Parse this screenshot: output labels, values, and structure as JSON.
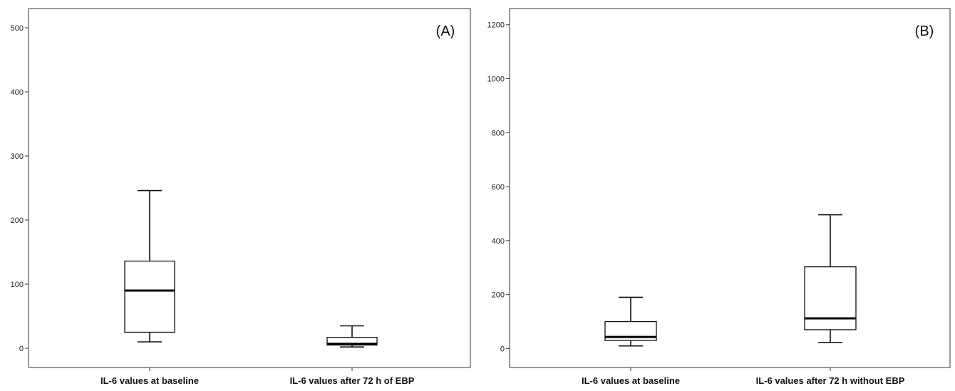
{
  "chart_data": [
    {
      "type": "box",
      "panel_label": "(A)",
      "categories": [
        "IL-6 values at baseline",
        "IL-6 values after 72 h of EBP"
      ],
      "boxes": [
        {
          "whisker_low": 10,
          "q1": 25,
          "median": 90,
          "q3": 136,
          "whisker_high": 246
        },
        {
          "whisker_low": 2,
          "q1": 5,
          "median": 7,
          "q3": 17,
          "whisker_high": 35
        }
      ],
      "yticks": [
        0,
        100,
        200,
        300,
        400,
        500
      ],
      "ylim": [
        -30,
        530
      ],
      "grid": false
    },
    {
      "type": "box",
      "panel_label": "(B)",
      "categories": [
        "IL-6 values at baseline",
        "IL-6 values after 72 h without EBP"
      ],
      "boxes": [
        {
          "whisker_low": 10,
          "q1": 30,
          "median": 43,
          "q3": 100,
          "whisker_high": 190
        },
        {
          "whisker_low": 23,
          "q1": 70,
          "median": 112,
          "q3": 303,
          "whisker_high": 496
        }
      ],
      "yticks": [
        0,
        200,
        400,
        600,
        800,
        1000,
        1200
      ],
      "ylim": [
        -70,
        1260
      ],
      "grid": false
    }
  ]
}
